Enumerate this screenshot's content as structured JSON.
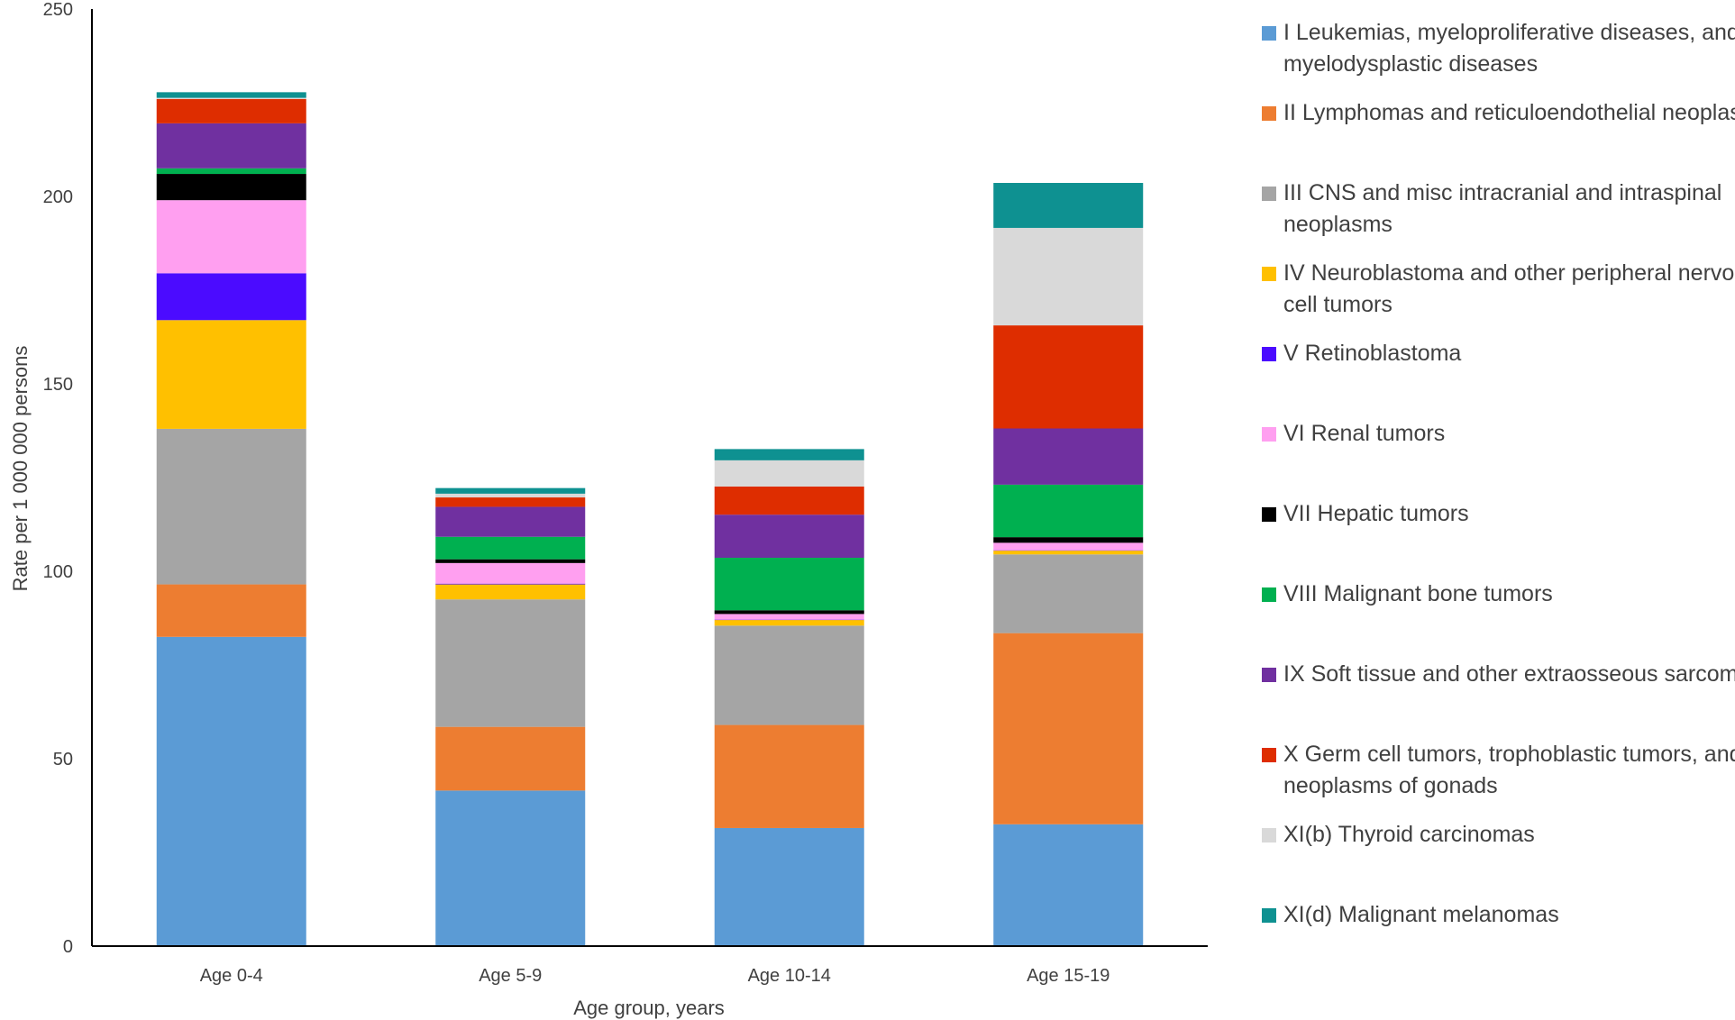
{
  "chart_data": {
    "type": "bar",
    "stacked": true,
    "title": "",
    "xlabel": "Age group, years",
    "ylabel": "Rate per 1 000 000 persons",
    "ylim": [
      0,
      250
    ],
    "yticks": [
      0,
      50,
      100,
      150,
      200,
      250
    ],
    "grid": false,
    "legend_position": "right",
    "categories": [
      "Age 0-4",
      "Age 5-9",
      "Age 10-14",
      "Age 15-19"
    ],
    "series": [
      {
        "name": "I Leukemias, myeloproliferative diseases, and myelodysplastic diseases",
        "color": "#5B9BD5",
        "values": [
          82.5,
          41.5,
          31.5,
          32.5
        ]
      },
      {
        "name": "II Lymphomas and reticuloendothelial neoplasms",
        "color": "#ED7D31",
        "values": [
          14.0,
          17.0,
          27.5,
          51.0
        ]
      },
      {
        "name": "III CNS and misc intracranial and intraspinal neoplasms",
        "color": "#A5A5A5",
        "values": [
          41.5,
          34.0,
          26.5,
          21.0
        ]
      },
      {
        "name": "IV Neuroblastoma and other peripheral nervous cell tumors",
        "color": "#FFC000",
        "values": [
          29.0,
          4.0,
          1.5,
          1.0
        ]
      },
      {
        "name": "V Retinoblastoma",
        "color": "#4B0BFF",
        "values": [
          12.5,
          0.2,
          0.1,
          0.1
        ]
      },
      {
        "name": "VI Renal tumors",
        "color": "#FF9FF0",
        "values": [
          19.5,
          5.5,
          1.5,
          2.0
        ]
      },
      {
        "name": "VII Hepatic tumors",
        "color": "#000000",
        "values": [
          7.0,
          1.0,
          1.0,
          1.5
        ]
      },
      {
        "name": "VIII Malignant bone tumors",
        "color": "#00B050",
        "values": [
          1.5,
          6.0,
          14.0,
          14.0
        ]
      },
      {
        "name": "IX Soft tissue and other extraosseous sarcomas",
        "color": "#7030A0",
        "values": [
          12.0,
          8.0,
          11.5,
          15.0
        ]
      },
      {
        "name": "X Germ cell tumors, trophoblastic tumors, and neoplasms of gonads",
        "color": "#DE2D00",
        "values": [
          6.5,
          2.5,
          7.5,
          27.5
        ]
      },
      {
        "name": "XI(b) Thyroid carcinomas",
        "color": "#D9D9D9",
        "values": [
          0.3,
          1.0,
          7.0,
          26.0
        ]
      },
      {
        "name": "XI(d) Malignant melanomas",
        "color": "#0E9191",
        "values": [
          1.5,
          1.5,
          3.0,
          12.0
        ]
      }
    ]
  }
}
